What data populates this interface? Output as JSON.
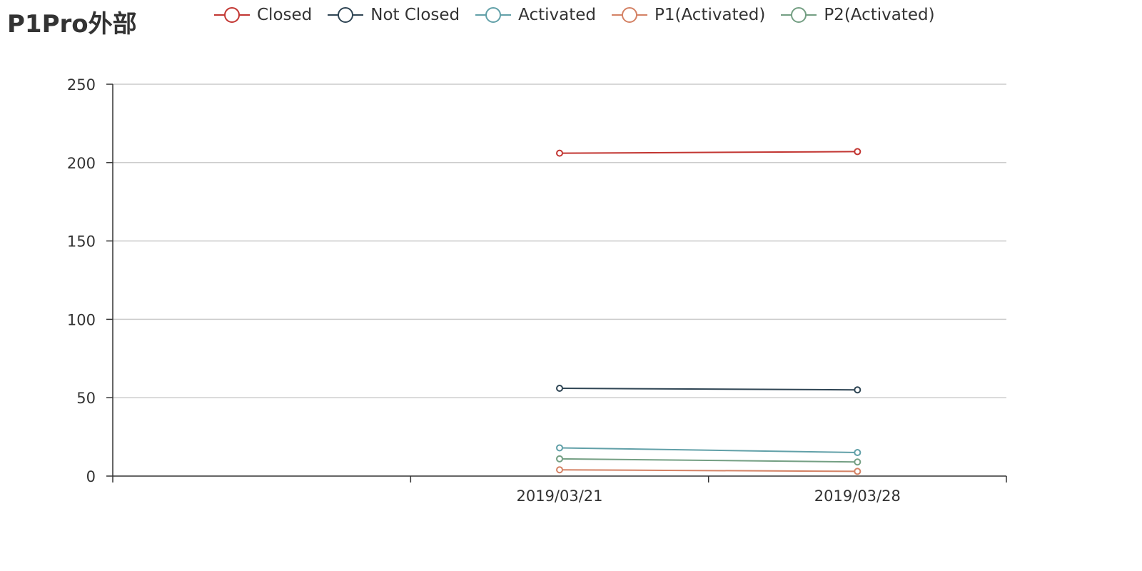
{
  "chart_data": {
    "type": "line",
    "title": "P1Pro外部",
    "x": [
      "",
      "2019/03/21",
      "2019/03/28"
    ],
    "x_labels_shown": [
      "2019/03/21",
      "2019/03/28"
    ],
    "ylim": [
      0,
      250
    ],
    "yticks": [
      0,
      50,
      100,
      150,
      200,
      250
    ],
    "grid": true,
    "legend_position": "top",
    "series": [
      {
        "name": "Closed",
        "color": "#c23531",
        "values": [
          null,
          206,
          207
        ]
      },
      {
        "name": "Not Closed",
        "color": "#2f4554",
        "values": [
          null,
          56,
          55
        ]
      },
      {
        "name": "Activated",
        "color": "#61a0a8",
        "values": [
          null,
          18,
          15
        ]
      },
      {
        "name": "P1(Activated)",
        "color": "#d48265",
        "values": [
          null,
          4,
          3
        ]
      },
      {
        "name": "P2(Activated)",
        "color": "#749f83",
        "values": [
          null,
          11,
          9
        ]
      }
    ]
  }
}
